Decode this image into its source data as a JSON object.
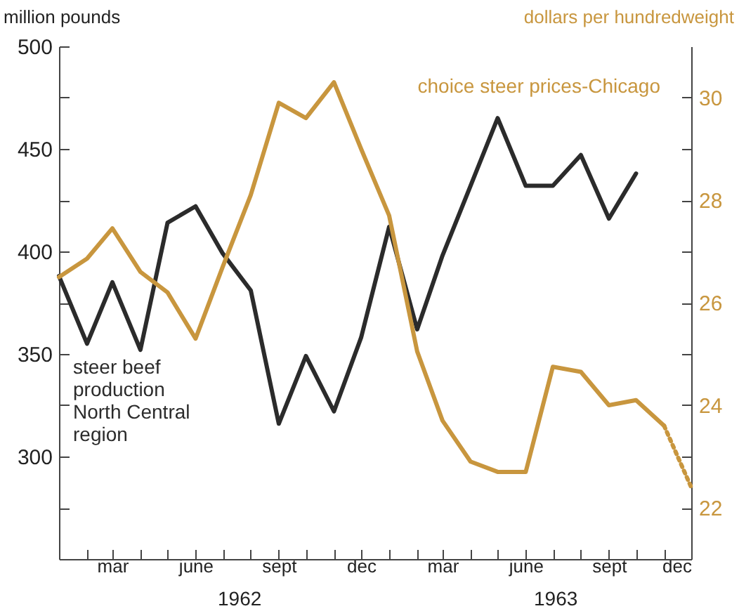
{
  "chart_data": {
    "type": "line",
    "x": [
      "1962-01",
      "1962-02",
      "1962-03",
      "1962-04",
      "1962-05",
      "1962-06",
      "1962-07",
      "1962-08",
      "1962-09",
      "1962-10",
      "1962-11",
      "1962-12",
      "1963-01",
      "1963-02",
      "1963-03",
      "1963-04",
      "1963-05",
      "1963-06",
      "1963-07",
      "1963-08",
      "1963-09",
      "1963-10",
      "1963-11",
      "1963-12"
    ],
    "series": [
      {
        "name": "steer beef production North Central region",
        "color": "#2b2b2b",
        "values": [
          388,
          355,
          385,
          352,
          414,
          422,
          399,
          381,
          316,
          349,
          322,
          358,
          412,
          362,
          398,
          432,
          465,
          432,
          432,
          447,
          416,
          438,
          null,
          null
        ]
      },
      {
        "name": "choice steer prices-Chicago",
        "color": "#c8963e",
        "axis": "y2",
        "values": [
          26.5,
          26.86,
          27.45,
          26.6,
          26.2,
          25.3,
          26.7,
          28.1,
          29.9,
          29.6,
          30.3,
          29.0,
          27.7,
          25.05,
          23.7,
          22.9,
          22.7,
          22.7,
          24.75,
          24.65,
          24.0,
          24.1,
          23.6,
          null
        ]
      },
      {
        "color": "#c8963e",
        "axis": "y2",
        "line_style": "dotted",
        "values": [
          null,
          null,
          null,
          null,
          null,
          null,
          null,
          null,
          null,
          null,
          null,
          null,
          null,
          null,
          null,
          null,
          null,
          null,
          null,
          null,
          null,
          null,
          23.6,
          22.4
        ]
      }
    ],
    "ylabel": "million pounds",
    "y2label": "dollars per hundredweight",
    "ylim": [
      250,
      500
    ],
    "yticks": [
      {
        "value": 275,
        "label": null
      },
      300,
      {
        "value": 325,
        "label": null
      },
      350,
      {
        "value": 375,
        "label": null
      },
      400,
      {
        "value": 425,
        "label": null
      },
      450,
      {
        "value": 475,
        "label": null
      },
      500
    ],
    "y2lim": [
      21,
      31
    ],
    "y2ticks": [
      22,
      {
        "value": 23,
        "label": null
      },
      24,
      {
        "value": 25,
        "label": null
      },
      26,
      {
        "value": 27,
        "label": null
      },
      28,
      {
        "value": 29,
        "label": null
      },
      30
    ],
    "xlim": [
      "1962-01",
      "1963-12"
    ],
    "xticks": [
      {
        "value": "1962-01",
        "label": null
      },
      {
        "value": "1962-02",
        "label": null
      },
      {
        "value": "1962-03",
        "label": "mar"
      },
      {
        "value": "1962-04",
        "label": null
      },
      {
        "value": "1962-05",
        "label": null
      },
      {
        "value": "1962-06",
        "label": "june"
      },
      {
        "value": "1962-07",
        "label": null
      },
      {
        "value": "1962-08",
        "label": null
      },
      {
        "value": "1962-09",
        "label": "sept"
      },
      {
        "value": "1962-10",
        "label": null
      },
      {
        "value": "1962-11",
        "label": null
      },
      {
        "value": "1962-12",
        "label": "dec"
      },
      {
        "value": "1963-01",
        "label": null
      },
      {
        "value": "1963-02",
        "label": null
      },
      {
        "value": "1963-03",
        "label": "mar"
      },
      {
        "value": "1963-04",
        "label": null
      },
      {
        "value": "1963-05",
        "label": null
      },
      {
        "value": "1963-06",
        "label": "june"
      },
      {
        "value": "1963-07",
        "label": null
      },
      {
        "value": "1963-08",
        "label": null
      },
      {
        "value": "1963-09",
        "label": "sept"
      },
      {
        "value": "1963-10",
        "label": null
      },
      {
        "value": "1963-11",
        "label": null
      },
      {
        "value": "1963-12",
        "label": "dec"
      }
    ],
    "annotations": [
      "1962",
      "1963"
    ],
    "grid": false,
    "legend": false,
    "marker": "none",
    "line_style": "solid"
  }
}
